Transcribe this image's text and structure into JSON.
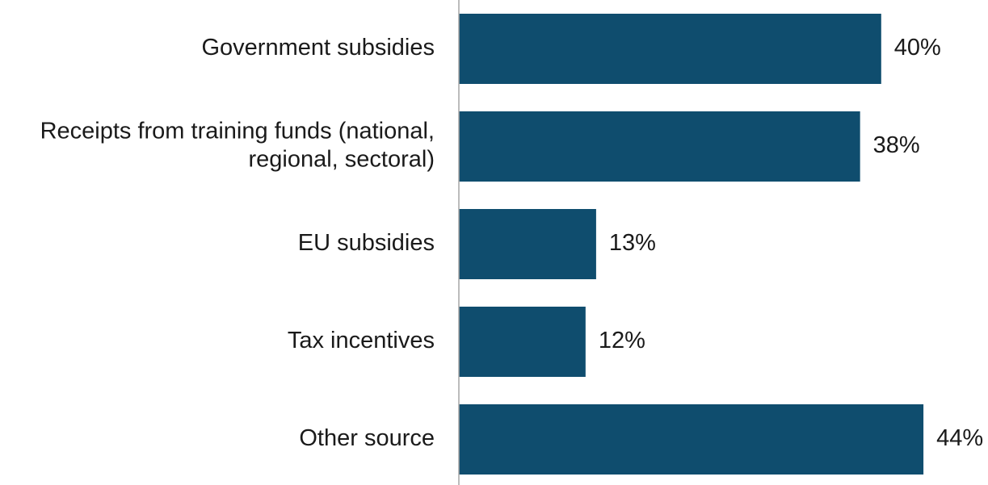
{
  "chart_data": {
    "type": "bar",
    "orientation": "horizontal",
    "title": "",
    "xlabel": "",
    "ylabel": "",
    "categories": [
      [
        "Government subsidies"
      ],
      [
        "Receipts from training funds (national,",
        "regional, sectoral)"
      ],
      [
        "EU subsidies"
      ],
      [
        "Tax incentives"
      ],
      [
        "Other source"
      ]
    ],
    "values": [
      40,
      38,
      13,
      12,
      44
    ],
    "value_labels": [
      "40%",
      "38%",
      "13%",
      "12%",
      "44%"
    ],
    "xlim": [
      0,
      50
    ],
    "grid": false,
    "legend": "none",
    "bar_color": "#0f4d6e",
    "axis_color": "#a6a6a6"
  }
}
